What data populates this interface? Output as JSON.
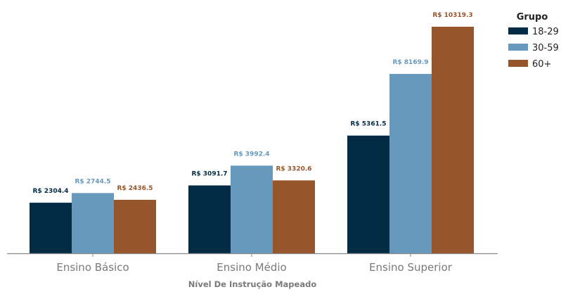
{
  "chart_data": {
    "type": "bar",
    "categories": [
      "Ensino Básico",
      "Ensino Médio",
      "Ensino Superior"
    ],
    "series": [
      {
        "name": "18-29",
        "color": "#032c44",
        "values": [
          2304.4,
          3091.7,
          5361.5
        ],
        "labels": [
          "R$ 2304.4",
          "R$ 3091.7",
          "R$ 5361.5"
        ]
      },
      {
        "name": "30-59",
        "color": "#6699bb",
        "values": [
          2744.5,
          3992.4,
          8169.9
        ],
        "labels": [
          "R$ 2744.5",
          "R$ 3992.4",
          "R$ 8169.9"
        ]
      },
      {
        "name": "60+",
        "color": "#96552a",
        "values": [
          2436.5,
          3320.6,
          10319.3
        ],
        "labels": [
          "R$ 2436.5",
          "R$ 3320.6",
          "R$ 10319.3"
        ]
      }
    ],
    "xlabel": "Nível De Instrução Mapeado",
    "ylabel": "",
    "ylim": [
      0,
      10319.3
    ],
    "grid": false,
    "legend": {
      "title": "Grupo",
      "placement": "top-right"
    }
  }
}
